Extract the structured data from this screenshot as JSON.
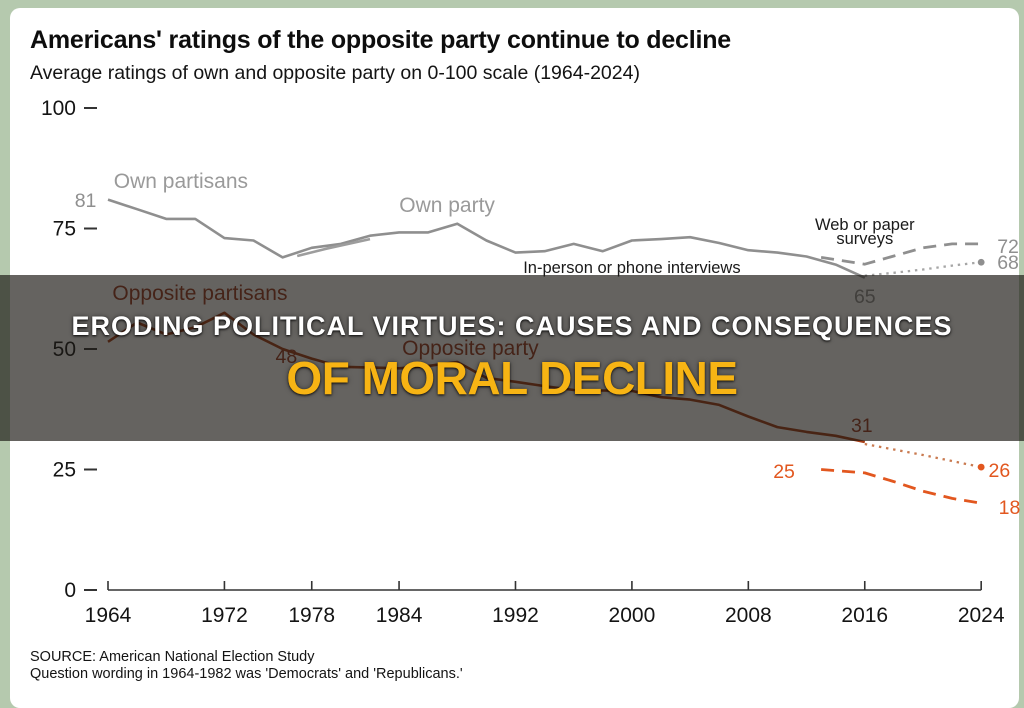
{
  "frame": {
    "bg_color": "#b5c9ae",
    "card_color": "#ffffff"
  },
  "header": {
    "title": "Americans' ratings of the opposite party continue to decline",
    "subtitle": "Average ratings of own and opposite party on 0-100 scale (1964-2024)"
  },
  "banner": {
    "line1": "ERODING POLITICAL VIRTUES: CAUSES AND CONSEQUENCES",
    "line2": "OF MORAL DECLINE",
    "line1_color": "#ffffff",
    "line2_color": "#f7b414",
    "overlay_color": "rgba(28,25,21,0.68)"
  },
  "source": {
    "line1": "SOURCE: American National Election Study",
    "line2": "Question wording in 1964-1982 was 'Democrats' and 'Republicans.'"
  },
  "chart_data": {
    "type": "line",
    "title": "Americans' ratings of the opposite party continue to decline",
    "subtitle": "Average ratings of own and opposite party on 0-100 scale (1964-2024)",
    "xlabel": "",
    "ylabel": "",
    "xlim": [
      1964,
      2024
    ],
    "ylim": [
      0,
      100
    ],
    "y_ticks": [
      0,
      25,
      50,
      75,
      100
    ],
    "x_ticks": [
      1964,
      1972,
      1978,
      1984,
      1992,
      2000,
      2008,
      2016,
      2024
    ],
    "grid": false,
    "legend_position": "inline-annotations",
    "axis_color": "#333333",
    "series": [
      {
        "id": "own-inperson",
        "name": "Own party — in-person or phone interviews",
        "style": "solid",
        "color": "#8f8f8f",
        "end_dot": false,
        "points": [
          [
            1964,
            81
          ],
          [
            1966,
            79
          ],
          [
            1968,
            77
          ],
          [
            1970,
            77
          ],
          [
            1972,
            73
          ],
          [
            1974,
            72.5
          ],
          [
            1976,
            69
          ],
          [
            1978,
            71
          ],
          [
            1980,
            71.8
          ],
          [
            1982,
            73.5
          ],
          [
            1984,
            74.2
          ],
          [
            1986,
            74.2
          ],
          [
            1988,
            76
          ],
          [
            1990,
            72.5
          ],
          [
            1992,
            70
          ],
          [
            1994,
            70.3
          ],
          [
            1996,
            71.8
          ],
          [
            1998,
            70.3
          ],
          [
            2000,
            72.5
          ],
          [
            2002,
            72.8
          ],
          [
            2004,
            73.2
          ],
          [
            2006,
            72
          ],
          [
            2008,
            70.5
          ],
          [
            2010,
            70
          ],
          [
            2012,
            69.2
          ],
          [
            2014,
            67.5
          ],
          [
            2016,
            64.8
          ]
        ]
      },
      {
        "id": "own-overlap",
        "name": "Own party — overlapping mode segment",
        "style": "solid",
        "color": "#9d9d9d",
        "end_dot": false,
        "points": [
          [
            1977,
            69.3
          ],
          [
            1979,
            70.8
          ],
          [
            1982,
            72.8
          ]
        ]
      },
      {
        "id": "own-web",
        "name": "Own party — web or paper surveys",
        "style": "dashed",
        "color": "#8f8f8f",
        "end_dot": false,
        "points": [
          [
            2013,
            69
          ],
          [
            2016,
            67.6
          ],
          [
            2018,
            69.3
          ],
          [
            2020,
            71
          ],
          [
            2022,
            71.8
          ],
          [
            2024,
            71.8
          ]
        ]
      },
      {
        "id": "own-projection",
        "name": "Own party — dotted series to 68",
        "style": "dotted",
        "color": "#a6a6a6",
        "end_dot": true,
        "dot_color": "#8f8f8f",
        "points": [
          [
            2016,
            65.2
          ],
          [
            2018,
            65.8
          ],
          [
            2020,
            66.5
          ],
          [
            2022,
            67.3
          ],
          [
            2024,
            68
          ]
        ]
      },
      {
        "id": "opp-inperson",
        "name": "Opposite party — in-person or phone interviews",
        "style": "solid",
        "color": "#a63c14",
        "end_dot": false,
        "points": [
          [
            1964,
            51.5
          ],
          [
            1966,
            55.5
          ],
          [
            1968,
            53
          ],
          [
            1970,
            54.5
          ],
          [
            1972,
            57.5
          ],
          [
            1974,
            53
          ],
          [
            1976,
            50
          ],
          [
            1978,
            48
          ],
          [
            1980,
            46.3
          ],
          [
            1984,
            46
          ],
          [
            1986,
            46.5
          ],
          [
            1988,
            47.3
          ],
          [
            1990,
            44
          ],
          [
            1992,
            43.2
          ],
          [
            1994,
            42.3
          ],
          [
            1996,
            41.5
          ],
          [
            1998,
            41.4
          ],
          [
            2000,
            41.3
          ],
          [
            2002,
            40
          ],
          [
            2004,
            39.5
          ],
          [
            2006,
            38.4
          ],
          [
            2008,
            36
          ],
          [
            2010,
            33.8
          ],
          [
            2012,
            32.8
          ],
          [
            2014,
            32
          ],
          [
            2016,
            30.7
          ]
        ]
      },
      {
        "id": "opp-projection",
        "name": "Opposite party — dotted series to 26",
        "style": "dotted",
        "color": "#c97a50",
        "end_dot": true,
        "dot_color": "#e2571f",
        "points": [
          [
            2016,
            30.3
          ],
          [
            2020,
            28
          ],
          [
            2024,
            25.5
          ]
        ]
      },
      {
        "id": "opp-web",
        "name": "Opposite party — web or paper surveys",
        "style": "dashed",
        "color": "#e2571f",
        "end_dot": false,
        "points": [
          [
            2013,
            25
          ],
          [
            2016,
            24.3
          ],
          [
            2018,
            22.5
          ],
          [
            2020,
            20.5
          ],
          [
            2022,
            19
          ],
          [
            2024,
            18
          ]
        ]
      }
    ],
    "annotations": [
      {
        "text": "Own partisans",
        "year": 1964.4,
        "value": 83.4,
        "anchor": "start",
        "color": "#9a9a9a",
        "kind": "series"
      },
      {
        "text": "81",
        "year": 1963.2,
        "value": 79.5,
        "anchor": "end",
        "color": "#8f8f8f",
        "kind": "value"
      },
      {
        "text": "Own party",
        "year": 1987.3,
        "value": 78.4,
        "anchor": "middle",
        "color": "#9a9a9a",
        "kind": "series"
      },
      {
        "text": "Web or paper",
        "year": 2016.0,
        "value": 74.7,
        "anchor": "middle",
        "color": "#1a1a1a",
        "kind": "note"
      },
      {
        "text": "surveys",
        "year": 2016.0,
        "value": 71.8,
        "anchor": "middle",
        "color": "#1a1a1a",
        "kind": "note"
      },
      {
        "text": "In-person or phone interviews",
        "year": 2000.0,
        "value": 65.8,
        "anchor": "middle",
        "color": "#1a1a1a",
        "kind": "note"
      },
      {
        "text": "72",
        "year": 2025.1,
        "value": 69.9,
        "anchor": "start",
        "color": "#8f8f8f",
        "kind": "value"
      },
      {
        "text": "68",
        "year": 2025.1,
        "value": 66.6,
        "anchor": "start",
        "color": "#8f8f8f",
        "kind": "value"
      },
      {
        "text": "65",
        "year": 2016.0,
        "value": 59.5,
        "anchor": "middle",
        "color": "#8f8f8f",
        "kind": "value"
      },
      {
        "text": "Opposite partisans",
        "year": 1964.3,
        "value": 60.2,
        "anchor": "start",
        "color": "#9c3a20",
        "kind": "series"
      },
      {
        "text": "48",
        "year": 1977.0,
        "value": 47.1,
        "anchor": "end",
        "color": "#9c3a20",
        "kind": "value"
      },
      {
        "text": "Opposite party",
        "year": 1988.9,
        "value": 48.8,
        "anchor": "middle",
        "color": "#9c3a20",
        "kind": "series"
      },
      {
        "text": "31",
        "year": 2015.8,
        "value": 32.8,
        "anchor": "middle",
        "color": "#9c3a20",
        "kind": "value"
      },
      {
        "text": "25",
        "year": 2011.2,
        "value": 23.2,
        "anchor": "end",
        "color": "#e2571f",
        "kind": "value"
      },
      {
        "text": "26",
        "year": 2024.5,
        "value": 23.4,
        "anchor": "start",
        "color": "#e2571f",
        "kind": "value"
      },
      {
        "text": "18",
        "year": 2025.2,
        "value": 15.8,
        "anchor": "start",
        "color": "#e2571f",
        "kind": "value"
      }
    ]
  }
}
